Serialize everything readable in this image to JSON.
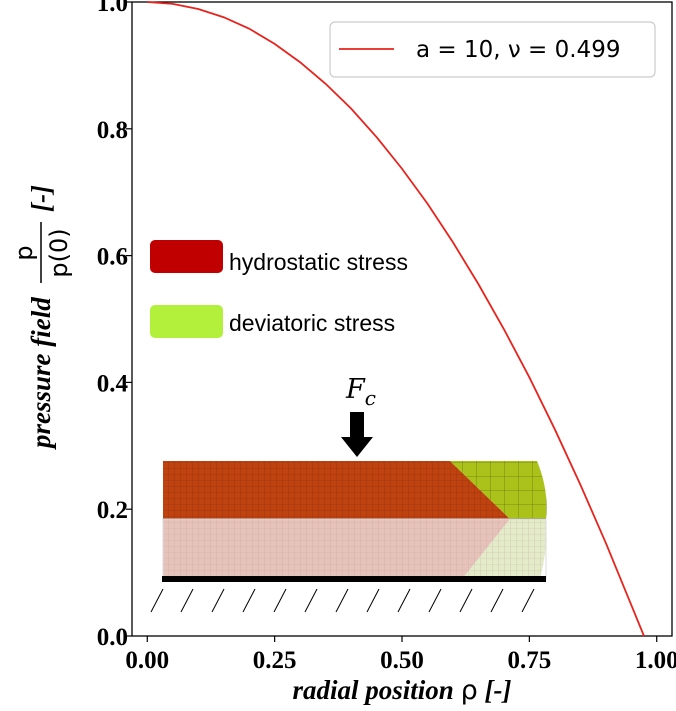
{
  "chart_data": {
    "type": "line",
    "title": "",
    "xlabel": "radial position",
    "xlabel_symbol": "ρ",
    "xlabel_unit": "[-]",
    "ylabel": "pressure field",
    "ylabel_numerator": "p",
    "ylabel_denominator": "p(0)",
    "ylabel_unit": "[-]",
    "xlim": [
      -0.03,
      1.03
    ],
    "ylim": [
      0.0,
      1.0
    ],
    "xticks": [
      "0.00",
      "0.25",
      "0.50",
      "0.75",
      "1.00"
    ],
    "xtick_values": [
      0.0,
      0.25,
      0.5,
      0.75,
      1.0
    ],
    "yticks": [
      "0.0",
      "0.2",
      "0.4",
      "0.6",
      "0.8",
      "1.0"
    ],
    "ytick_values": [
      0.0,
      0.2,
      0.4,
      0.6,
      0.8,
      1.0
    ],
    "grid": false,
    "legend_position": "top-right",
    "series": [
      {
        "name": "a = 10, ν = 0.499",
        "color": "#e8231d",
        "x": [
          0.0,
          0.05,
          0.1,
          0.15,
          0.2,
          0.25,
          0.3,
          0.35,
          0.4,
          0.45,
          0.5,
          0.55,
          0.6,
          0.65,
          0.7,
          0.75,
          0.8,
          0.85,
          0.9,
          0.95,
          0.975
        ],
        "y": [
          1.0,
          0.997,
          0.989,
          0.976,
          0.958,
          0.934,
          0.905,
          0.871,
          0.832,
          0.787,
          0.737,
          0.682,
          0.621,
          0.555,
          0.484,
          0.408,
          0.326,
          0.239,
          0.147,
          0.049,
          0.0
        ]
      }
    ],
    "inset": {
      "force_label": "F",
      "force_subscript": "c",
      "legend": [
        {
          "label": "hydrostatic stress",
          "color": "#c00000"
        },
        {
          "label": "deviatoric stress",
          "color": "#b2f03c"
        }
      ]
    }
  }
}
